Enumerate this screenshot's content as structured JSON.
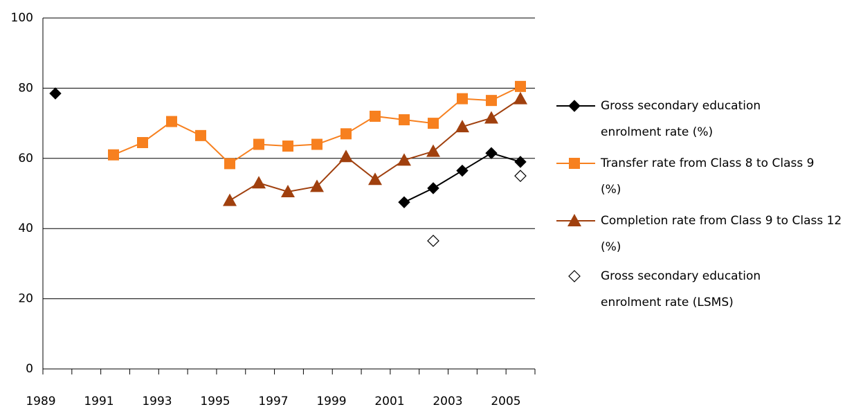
{
  "chart_data": {
    "type": "line",
    "categories": [
      "1989",
      null,
      "1991",
      null,
      "1993",
      null,
      "1995",
      null,
      "1997",
      null,
      "1999",
      null,
      "2001",
      null,
      "2003",
      null,
      "2005"
    ],
    "ylim": [
      0,
      100
    ],
    "yticks": [
      0,
      20,
      40,
      60,
      80,
      100
    ],
    "grid": true,
    "legend": "right",
    "series": [
      {
        "name": "Gross secondary education enrolment rate (%)",
        "color": "#000000",
        "marker": "diamond",
        "line": true,
        "values": [
          78.5,
          null,
          null,
          null,
          null,
          null,
          null,
          null,
          null,
          null,
          null,
          null,
          47.5,
          51.5,
          56.5,
          61.5,
          59
        ]
      },
      {
        "name": "Transfer rate from Class 8 to Class 9 (%)",
        "color": "#f7801f",
        "marker": "square",
        "line": true,
        "values": [
          null,
          null,
          61,
          64.5,
          70.5,
          66.5,
          58.5,
          64,
          63.5,
          64,
          67,
          72,
          71,
          70,
          77,
          76.5,
          80.5
        ]
      },
      {
        "name": "Completion rate from Class 9 to Class 12 (%)",
        "color": "#a0400e",
        "marker": "triangle",
        "line": true,
        "values": [
          null,
          null,
          null,
          null,
          null,
          null,
          48,
          53,
          50.5,
          52,
          60.5,
          54,
          59.5,
          62,
          69,
          71.5,
          77
        ]
      },
      {
        "name": "Gross secondary education enrolment rate (LSMS)",
        "color": "#000000",
        "marker": "hollow-diamond",
        "line": false,
        "values": [
          null,
          null,
          null,
          null,
          null,
          null,
          null,
          null,
          null,
          null,
          null,
          null,
          null,
          36.5,
          null,
          null,
          55
        ]
      }
    ]
  }
}
